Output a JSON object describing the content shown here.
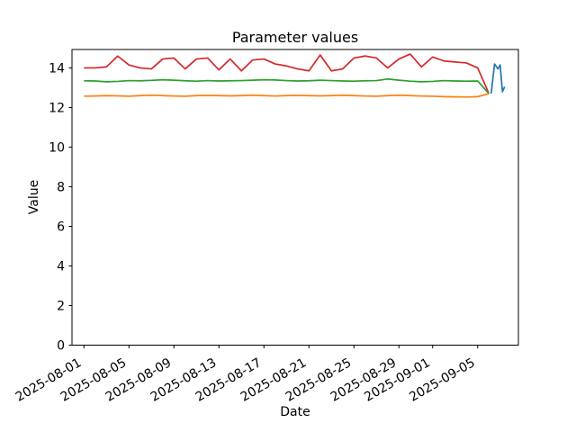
{
  "chart_data": {
    "type": "line",
    "title": "Parameter values",
    "xlabel": "Date",
    "ylabel": "Value",
    "grid": false,
    "legend": null,
    "background_color": "#ffffff",
    "spine_color": "#000000",
    "x_axis": {
      "start_date": "2025-08-01",
      "unit": "days since 2025-08-01",
      "lim_days": [
        -1.06,
        38.62
      ],
      "tick_day_offsets": [
        0,
        4,
        8,
        12,
        16,
        20,
        24,
        28,
        31,
        35
      ],
      "tick_labels": [
        "2025-08-01",
        "2025-08-05",
        "2025-08-09",
        "2025-08-13",
        "2025-08-17",
        "2025-08-21",
        "2025-08-25",
        "2025-08-29",
        "2025-09-01",
        "2025-09-05"
      ],
      "tick_label_rotation_deg": 30
    },
    "y_axis": {
      "lim": [
        0,
        14.93
      ],
      "ticks": [
        0,
        2,
        4,
        6,
        8,
        10,
        12,
        14
      ]
    },
    "series": [
      {
        "name": "red",
        "color": "#d62728",
        "x_day_start": 0,
        "x_day_step": 1,
        "values": [
          14.0,
          14.0,
          14.05,
          14.6,
          14.15,
          14.0,
          13.95,
          14.45,
          14.5,
          13.95,
          14.45,
          14.5,
          13.9,
          14.45,
          13.85,
          14.4,
          14.45,
          14.2,
          14.1,
          13.95,
          13.85,
          14.65,
          13.85,
          13.95,
          14.5,
          14.6,
          14.5,
          14.0,
          14.45,
          14.7,
          14.05,
          14.55,
          14.35,
          14.3,
          14.25,
          14.0,
          12.7
        ]
      },
      {
        "name": "green",
        "color": "#2ca02c",
        "x_day_start": 0,
        "x_day_step": 1,
        "values": [
          13.35,
          13.34,
          13.3,
          13.32,
          13.36,
          13.35,
          13.37,
          13.4,
          13.38,
          13.35,
          13.33,
          13.36,
          13.34,
          13.35,
          13.36,
          13.38,
          13.4,
          13.39,
          13.36,
          13.34,
          13.35,
          13.38,
          13.36,
          13.34,
          13.33,
          13.35,
          13.36,
          13.44,
          13.38,
          13.33,
          13.3,
          13.32,
          13.36,
          13.34,
          13.33,
          13.34,
          12.7
        ]
      },
      {
        "name": "orange",
        "color": "#ff7f0e",
        "x_day_start": 0,
        "x_day_step": 1,
        "values": [
          12.57,
          12.58,
          12.6,
          12.59,
          12.57,
          12.6,
          12.62,
          12.6,
          12.58,
          12.57,
          12.6,
          12.61,
          12.6,
          12.59,
          12.6,
          12.62,
          12.6,
          12.58,
          12.6,
          12.61,
          12.6,
          12.59,
          12.6,
          12.62,
          12.6,
          12.58,
          12.57,
          12.6,
          12.62,
          12.6,
          12.58,
          12.57,
          12.55,
          12.54,
          12.53,
          12.55,
          12.7
        ]
      },
      {
        "name": "blue",
        "color": "#1f77b4",
        "x_days": [
          36.2,
          36.5,
          36.8,
          37.0,
          37.2,
          37.4
        ],
        "values": [
          12.7,
          14.2,
          13.95,
          14.15,
          12.8,
          13.05
        ]
      }
    ]
  }
}
